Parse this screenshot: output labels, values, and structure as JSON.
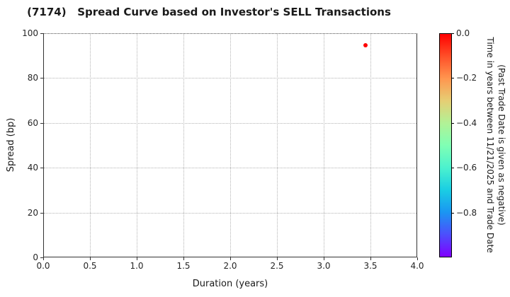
{
  "title": "(7174)   Spread Curve based on Investor's SELL Transactions",
  "chart_data": {
    "type": "scatter",
    "title": "(7174)   Spread Curve based on Investor's SELL Transactions",
    "xlabel": "Duration (years)",
    "ylabel": "Spread (bp)",
    "xlim": [
      0.0,
      4.0
    ],
    "ylim": [
      0,
      100
    ],
    "x_tick_labels": [
      "0.0",
      "0.5",
      "1.0",
      "1.5",
      "2.0",
      "2.5",
      "3.0",
      "3.5",
      "4.0"
    ],
    "y_tick_labels": [
      "0",
      "20",
      "40",
      "60",
      "80",
      "100"
    ],
    "grid": true,
    "grid_style": "dotted",
    "legend_position": "none",
    "points": [
      {
        "x": 3.45,
        "y": 95,
        "color": "#ff0000",
        "colorbar_value": 0.0
      }
    ],
    "colorbar": {
      "label_line1": "Time in years between 11/21/2025 and Trade Date",
      "label_line2": "(Past Trade Date is given as negative)",
      "tick_labels": [
        "0.0",
        "−0.2",
        "−0.4",
        "−0.6",
        "−0.8"
      ],
      "range_top": 0.0,
      "range_bottom": -1.0,
      "colormap": "rainbow reversed (red = 0.0 at top, violet = -1.0 at bottom)",
      "gradient_stops": [
        "#ff0000",
        "#ff4f28",
        "#ff964f",
        "#e6ce74",
        "#b2f296",
        "#80ffb4",
        "#4cf2ce",
        "#1acee3",
        "#1a96f2",
        "#4c4ffc",
        "#8000ff"
      ]
    }
  }
}
